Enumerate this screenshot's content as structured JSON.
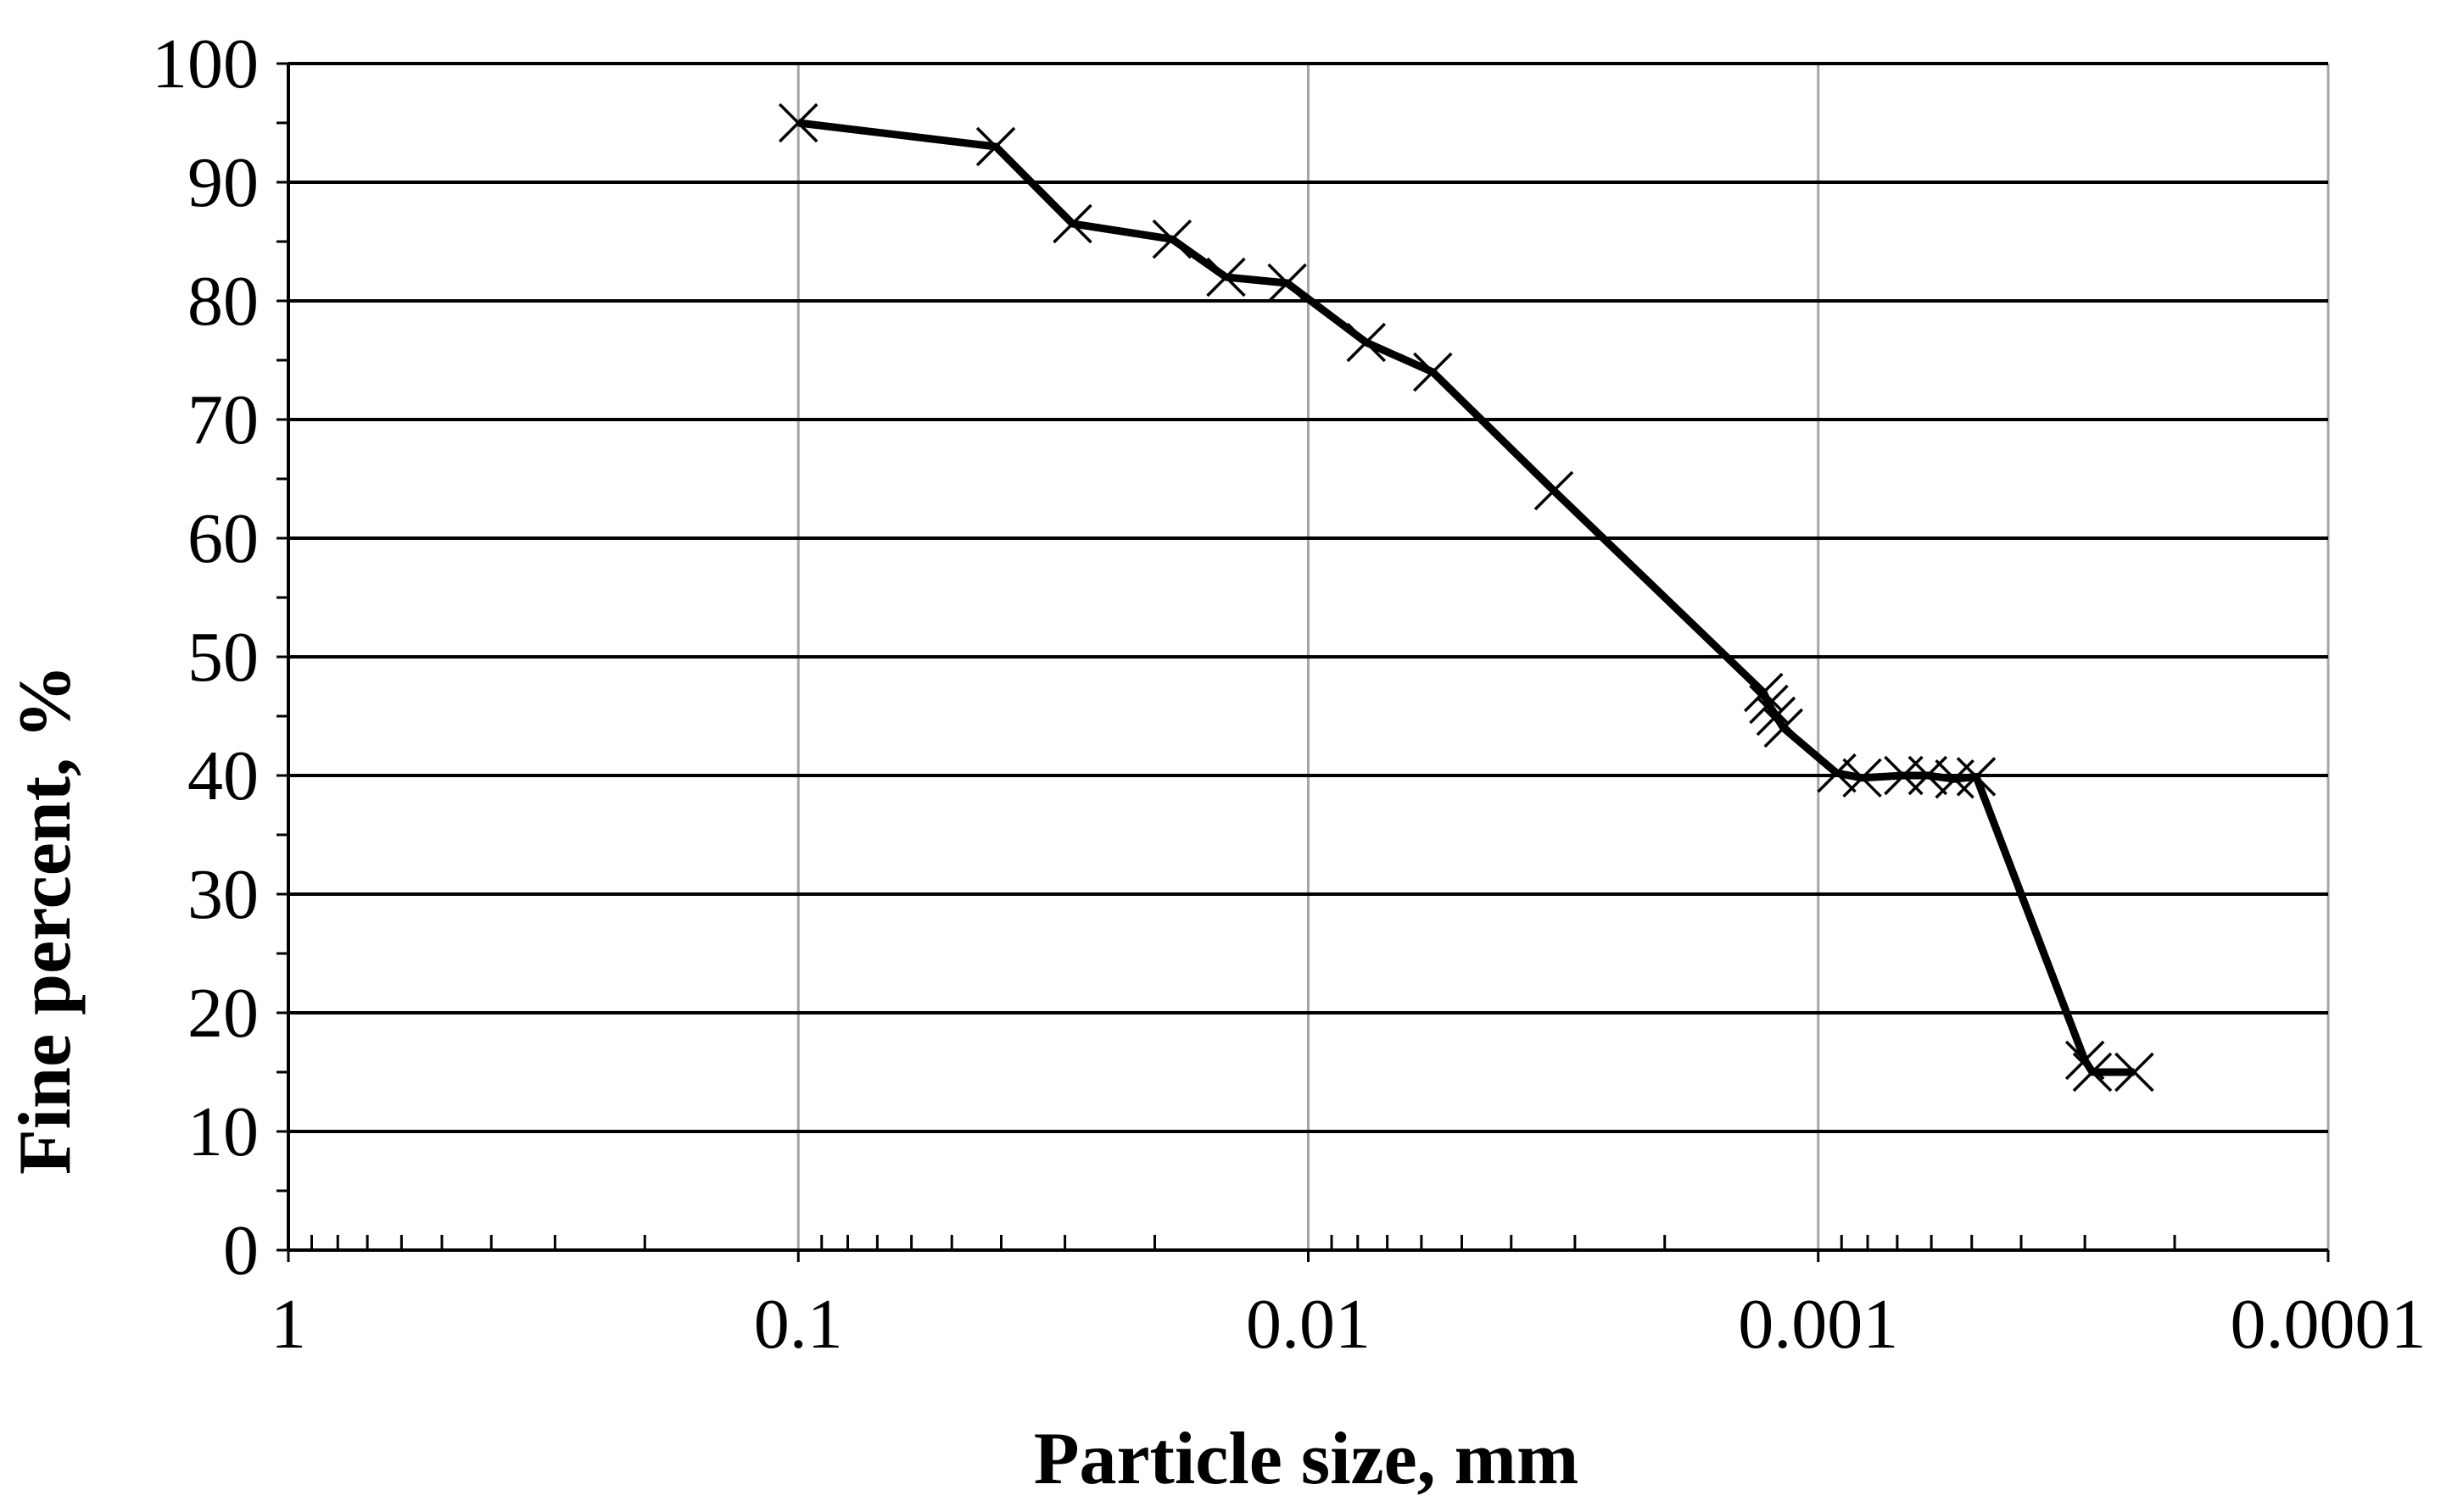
{
  "chart_data": {
    "type": "line",
    "title": "",
    "xlabel": "Particle size, mm",
    "ylabel": "Fine percent, %",
    "x_scale": "log",
    "x_reversed": true,
    "xlim": [
      1,
      0.0001
    ],
    "ylim": [
      0,
      100
    ],
    "x_ticks": [
      "1",
      "0.1",
      "0.01",
      "0.001",
      "0.0001"
    ],
    "y_ticks": [
      "0",
      "10",
      "20",
      "30",
      "40",
      "50",
      "60",
      "70",
      "80",
      "90",
      "100"
    ],
    "grid": {
      "horizontal": true,
      "vertical": true
    },
    "legend": "none",
    "series": [
      {
        "marker": "x",
        "color": "#000000",
        "points": [
          {
            "x": 0.1,
            "y": 95
          },
          {
            "x": 0.041,
            "y": 93
          },
          {
            "x": 0.029,
            "y": 86.5
          },
          {
            "x": 0.0185,
            "y": 85.2
          },
          {
            "x": 0.0145,
            "y": 82
          },
          {
            "x": 0.011,
            "y": 81.5
          },
          {
            "x": 0.0077,
            "y": 76.5
          },
          {
            "x": 0.0057,
            "y": 74
          },
          {
            "x": 0.0033,
            "y": 64
          },
          {
            "x": 0.00128,
            "y": 47
          },
          {
            "x": 0.00125,
            "y": 46
          },
          {
            "x": 0.00121,
            "y": 45
          },
          {
            "x": 0.00117,
            "y": 44
          },
          {
            "x": 0.00092,
            "y": 40.2
          },
          {
            "x": 0.00082,
            "y": 39.8
          },
          {
            "x": 0.00068,
            "y": 40
          },
          {
            "x": 0.00061,
            "y": 40
          },
          {
            "x": 0.00054,
            "y": 39.7
          },
          {
            "x": 0.00049,
            "y": 39.9
          },
          {
            "x": 0.0003,
            "y": 16
          },
          {
            "x": 0.00029,
            "y": 15
          },
          {
            "x": 0.00024,
            "y": 15
          }
        ]
      }
    ]
  }
}
